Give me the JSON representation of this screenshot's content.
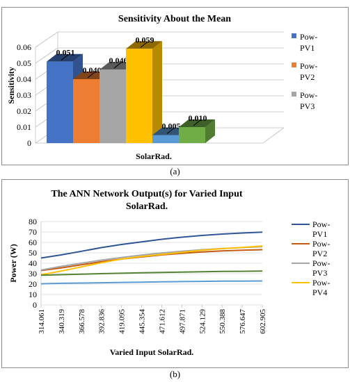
{
  "captions": {
    "a": "(a)",
    "b": "(b)"
  },
  "chart_data": [
    {
      "type": "bar",
      "title": "Sensitivity About the Mean",
      "xlabel": "SolarRad.",
      "ylabel": "Sensitivity",
      "ylim": [
        0,
        0.06
      ],
      "yticks": [
        "0",
        "0.01",
        "0.02",
        "0.03",
        "0.04",
        "0.05",
        "0.06"
      ],
      "legend_position": "right",
      "grid": true,
      "series": [
        {
          "name": "Pow-PV1",
          "value": 0.051,
          "label": "0.051",
          "color": "#4472c4"
        },
        {
          "name": "Pow-PV2",
          "value": 0.04,
          "label": "0.040",
          "color": "#ed7d31"
        },
        {
          "name": "Pow-PV3",
          "value": 0.046,
          "label": "0.046",
          "color": "#a5a5a5"
        },
        {
          "name": "",
          "value": 0.059,
          "label": "0.059",
          "color": "#ffc000"
        },
        {
          "name": "",
          "value": 0.005,
          "label": "0.005",
          "color": "#5b9bd5"
        },
        {
          "name": "",
          "value": 0.01,
          "label": "0.010",
          "color": "#70ad47"
        }
      ]
    },
    {
      "type": "line",
      "title": "The ANN Network Output(s) for Varied Input SolarRad.",
      "title_lines": [
        "The ANN Network Output(s) for Varied Input",
        "SolarRad."
      ],
      "xlabel": "Varied Input SolarRad.",
      "ylabel": "Power (W)",
      "ylim": [
        0,
        80
      ],
      "yticks": [
        "0",
        "10",
        "20",
        "30",
        "40",
        "50",
        "60",
        "70",
        "80"
      ],
      "x": [
        314.061,
        340.319,
        366.578,
        392.836,
        419.095,
        445.354,
        471.612,
        497.871,
        524.129,
        550.388,
        576.647,
        602.905
      ],
      "x_labels": [
        "314.061",
        "340.319",
        "366.578",
        "392.836",
        "419.095",
        "445.354",
        "471.612",
        "497.871",
        "524.129",
        "550.388",
        "576.647",
        "602.905"
      ],
      "legend_position": "right",
      "grid": true,
      "series": [
        {
          "name": "Pow-PV1",
          "color": "#2f5597",
          "values": [
            45,
            48,
            51.5,
            55,
            58,
            60.5,
            63,
            65,
            66.7,
            68,
            69,
            69.8
          ]
        },
        {
          "name": "Pow-PV2",
          "color": "#c55a11",
          "values": [
            33,
            35.5,
            38.5,
            41.5,
            44,
            46,
            48,
            49.5,
            50.8,
            51.8,
            52.5,
            53
          ]
        },
        {
          "name": "Pow-PV3",
          "color": "#a5a5a5",
          "values": [
            33.5,
            37,
            40,
            43,
            45.5,
            47.8,
            49.8,
            51.5,
            53,
            54.2,
            55,
            55.8
          ]
        },
        {
          "name": "Pow-PV4",
          "color": "#ffc000",
          "values": [
            29,
            32.5,
            36.5,
            40.5,
            44,
            46.5,
            48.5,
            50.5,
            52.5,
            54,
            55.2,
            56.5
          ]
        },
        {
          "name": "",
          "color": "#5b9bd5",
          "values": [
            20.3,
            20.7,
            21,
            21.3,
            21.6,
            21.9,
            22.2,
            22.4,
            22.6,
            22.8,
            22.9,
            23
          ]
        },
        {
          "name": "",
          "color": "#548235",
          "values": [
            28.5,
            29,
            29.5,
            30,
            30.4,
            30.8,
            31.2,
            31.5,
            31.8,
            32.1,
            32.3,
            32.5
          ]
        }
      ]
    }
  ]
}
